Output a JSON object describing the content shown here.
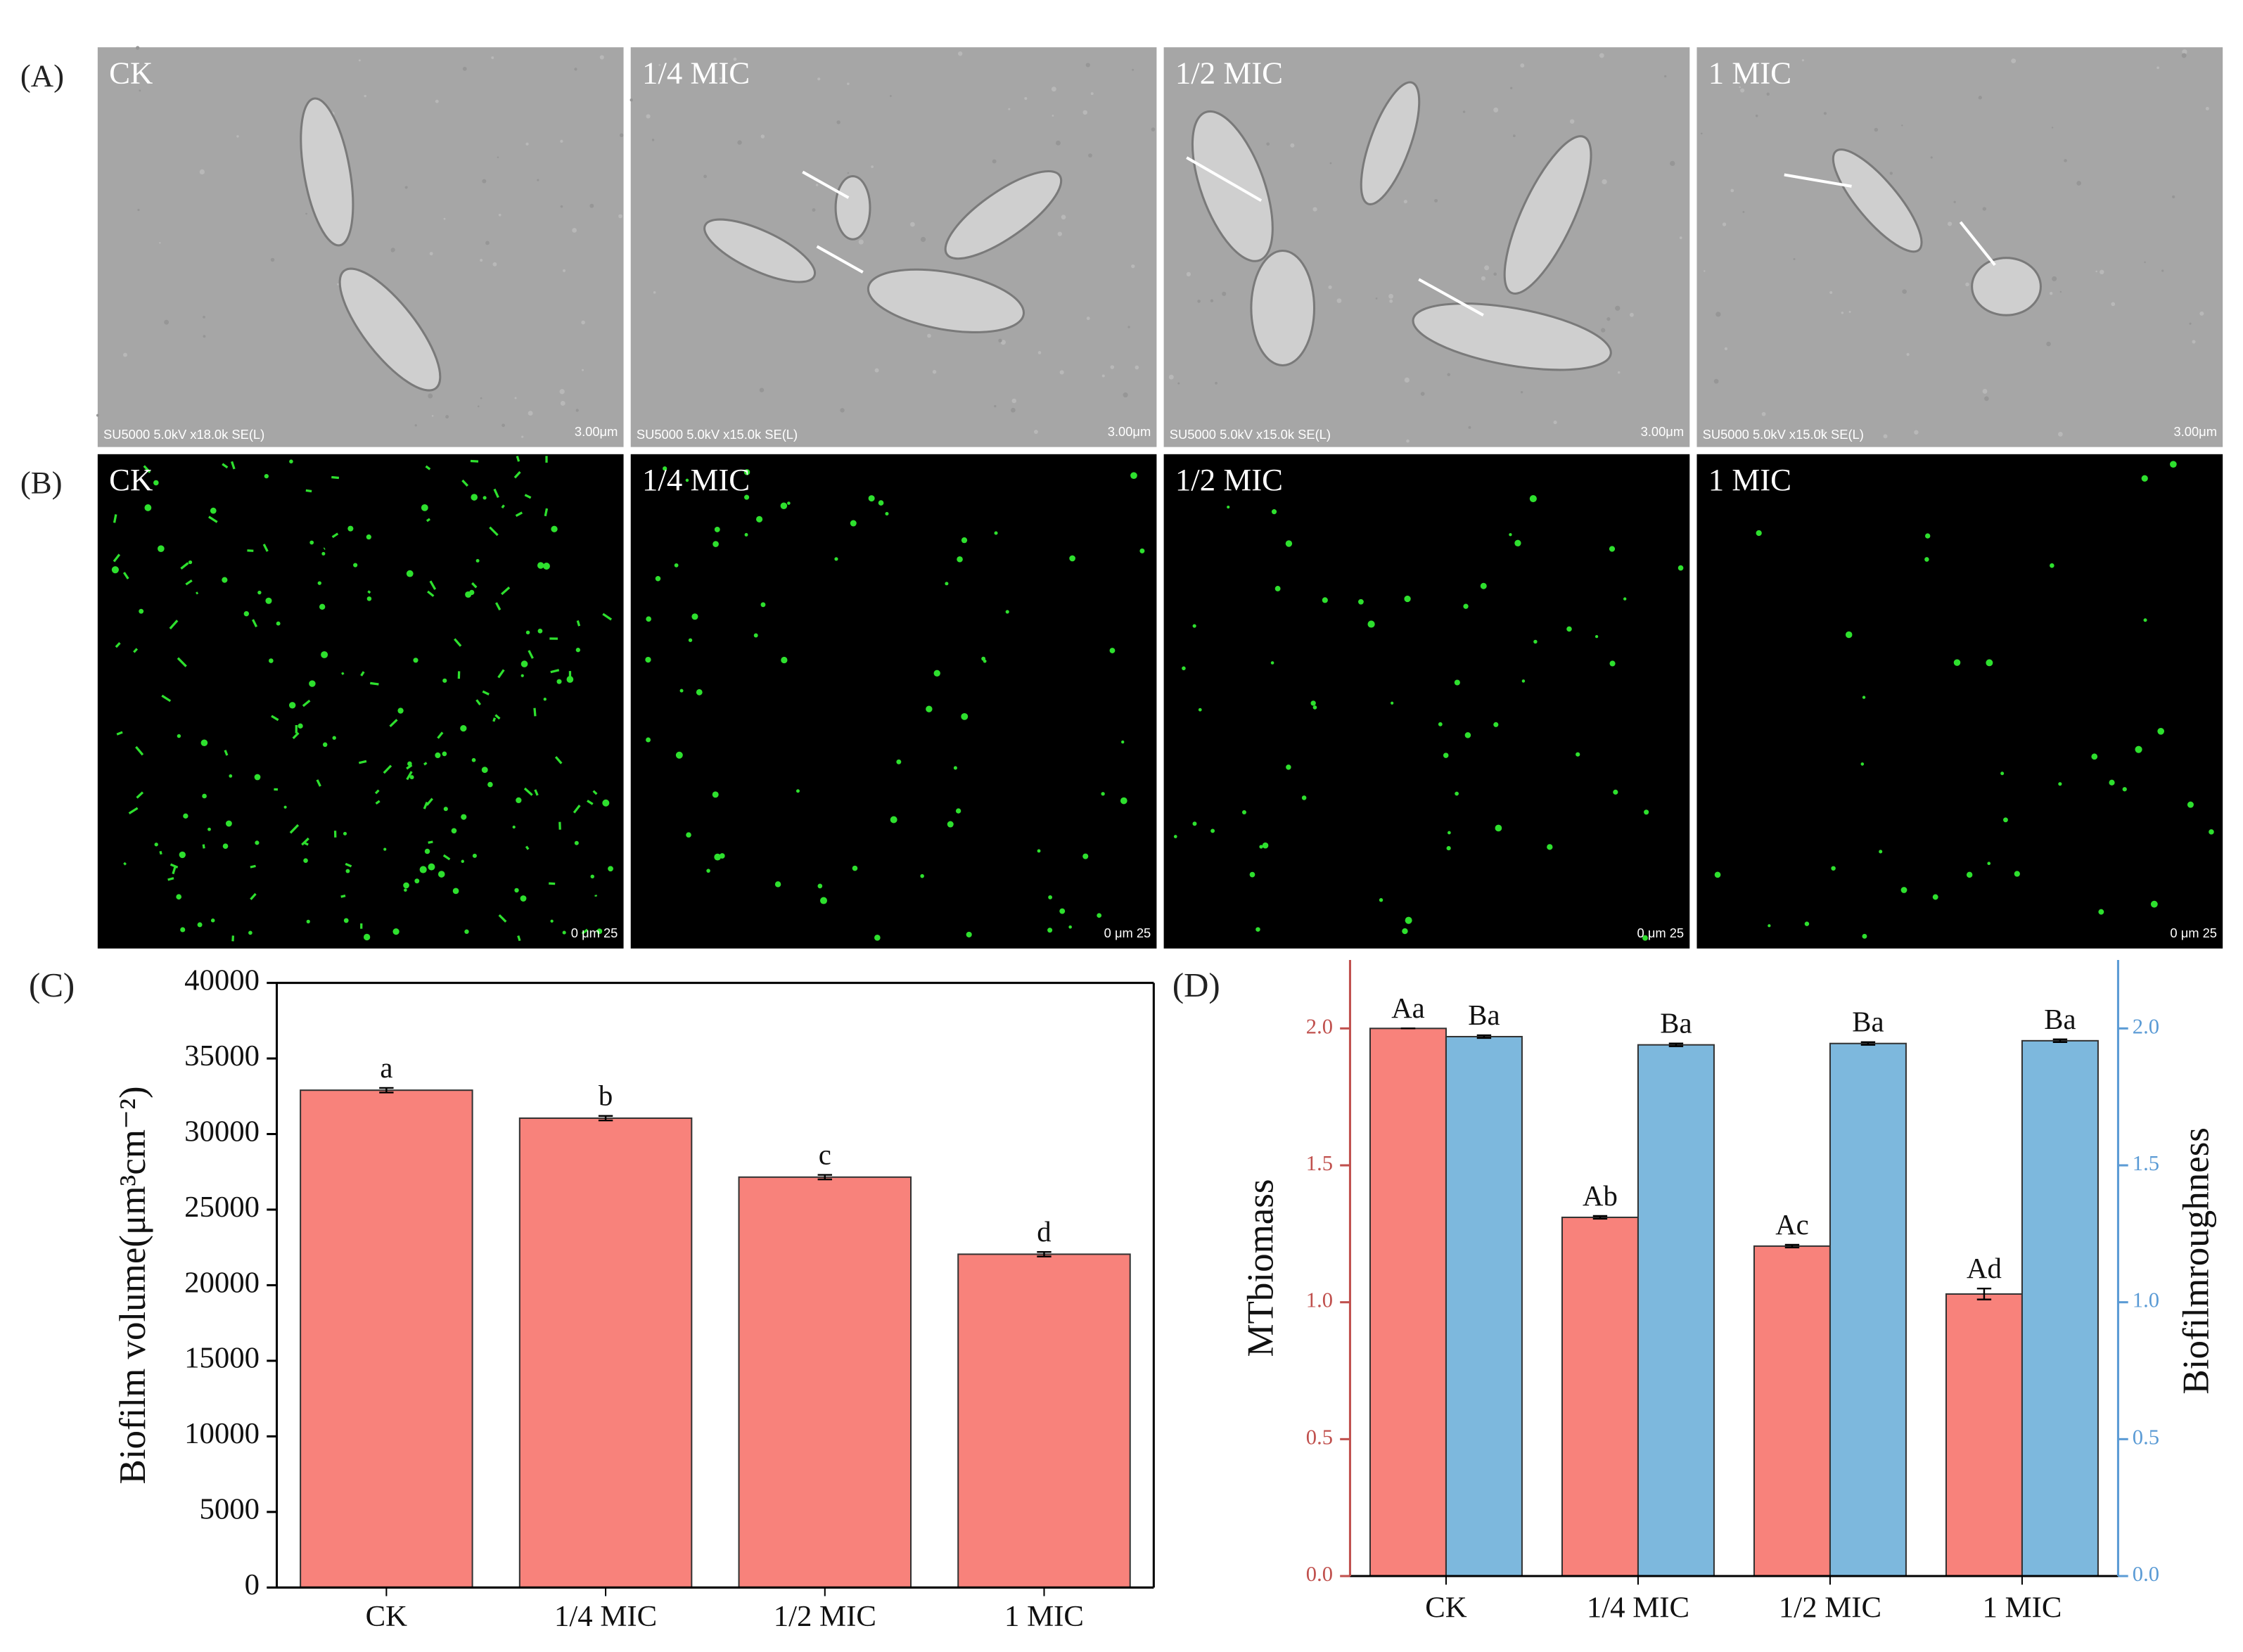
{
  "image_rows": [
    {
      "label": "(A)",
      "panels": [
        {
          "title": "CK",
          "caption": "SU5000 5.0kV x18.0k SE(L)",
          "scale": "3.00μm"
        },
        {
          "title": "1/4 MIC",
          "caption": "SU5000 5.0kV x15.0k SE(L)",
          "scale": "3.00μm"
        },
        {
          "title": "1/2 MIC",
          "caption": "SU5000 5.0kV x15.0k SE(L)",
          "scale": "3.00μm"
        },
        {
          "title": "1 MIC",
          "caption": "SU5000 5.0kV x15.0k SE(L)",
          "scale": "3.00μm"
        }
      ]
    },
    {
      "label": "(B)",
      "panels": [
        {
          "title": "CK",
          "scale": "0 μm 25"
        },
        {
          "title": "1/4 MIC",
          "scale": "0 μm 25"
        },
        {
          "title": "1/2 MIC",
          "scale": "0 μm 25"
        },
        {
          "title": "1 MIC",
          "scale": "0 μm 25"
        }
      ]
    }
  ],
  "chart_data": [
    {
      "type": "bar",
      "panel_label": "(C)",
      "ylabel": "Biofilm volume(μm³cm⁻²)",
      "categories": [
        "CK",
        "1/4 MIC",
        "1/2 MIC",
        "1 MIC"
      ],
      "values": [
        32900,
        31050,
        27150,
        22050
      ],
      "errors": [
        150,
        150,
        150,
        150
      ],
      "annotations": [
        "a",
        "b",
        "c",
        "d"
      ],
      "color": "#f8827b",
      "ylim": [
        0,
        40000
      ],
      "yticks": [
        0,
        5000,
        10000,
        15000,
        20000,
        25000,
        30000,
        35000,
        40000
      ]
    },
    {
      "type": "bar",
      "panel_label": "(D)",
      "ylabel": "MTbiomass",
      "y2label": "Biofilmroughness",
      "categories": [
        "CK",
        "1/4 MIC",
        "1/2 MIC",
        "1 MIC"
      ],
      "series": [
        {
          "color": "#f8827b",
          "values": [
            2.0,
            1.31,
            1.205,
            1.03
          ],
          "errors": [
            0.0,
            0.005,
            0.005,
            0.02
          ],
          "annotations": [
            "Aa",
            "Ab",
            "Ac",
            "Ad"
          ]
        },
        {
          "color": "#7db8dd",
          "axis": "y2",
          "values": [
            1.97,
            1.94,
            1.945,
            1.955
          ],
          "errors": [
            0.005,
            0.005,
            0.005,
            0.005
          ],
          "annotations": [
            "Ba",
            "Ba",
            "Ba",
            "Ba"
          ]
        }
      ],
      "ylim": [
        0,
        2.25
      ],
      "yticks": [
        {
          "value": 0,
          "label": "0.0"
        },
        {
          "value": 0.5,
          "label": "0.5"
        },
        {
          "value": 1,
          "label": "1.0"
        },
        {
          "value": 1.5,
          "label": "1.5"
        },
        {
          "value": 2,
          "label": "2.0"
        }
      ],
      "y2lim": [
        0,
        2.25
      ],
      "y2ticks": [
        {
          "value": 0,
          "label": "0.0"
        },
        {
          "value": 0.5,
          "label": "0.5"
        },
        {
          "value": 1,
          "label": "1.0"
        },
        {
          "value": 1.5,
          "label": "1.5"
        },
        {
          "value": 2,
          "label": "2.0"
        }
      ]
    }
  ]
}
